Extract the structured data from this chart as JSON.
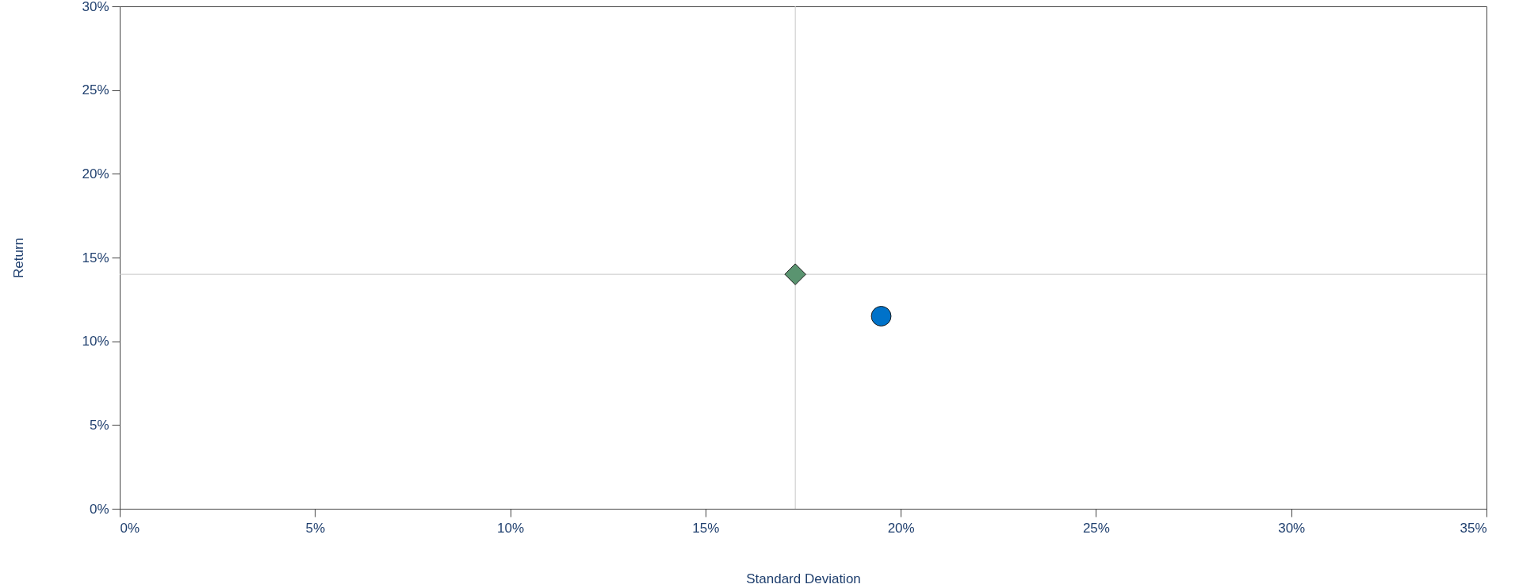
{
  "chart_data": {
    "type": "scatter",
    "xlabel": "Standard Deviation",
    "ylabel": "Return",
    "series": [
      {
        "color": "#5a9470",
        "marker": "diamond",
        "x": [
          17.3
        ],
        "values": [
          14.0
        ]
      },
      {
        "color": "#0072c9",
        "marker": "circle",
        "x": [
          19.5
        ],
        "values": [
          11.5
        ]
      }
    ],
    "xlim": [
      0,
      35
    ],
    "ylim": [
      0,
      30
    ],
    "xticks": [
      {
        "value": 0,
        "label": "0%"
      },
      {
        "value": 5,
        "label": "5%"
      },
      {
        "value": 10,
        "label": "10%"
      },
      {
        "value": 15,
        "label": "15%"
      },
      {
        "value": 20,
        "label": "20%"
      },
      {
        "value": 25,
        "label": "25%"
      },
      {
        "value": 30,
        "label": "30%"
      },
      {
        "value": 35,
        "label": "35%"
      }
    ],
    "yticks": [
      {
        "value": 0,
        "label": "0%"
      },
      {
        "value": 5,
        "label": "5%"
      },
      {
        "value": 10,
        "label": "10%"
      },
      {
        "value": 15,
        "label": "15%"
      },
      {
        "value": 20,
        "label": "20%"
      },
      {
        "value": 25,
        "label": "25%"
      },
      {
        "value": 30,
        "label": "30%"
      }
    ],
    "ref_lines": [
      {
        "axis": "x",
        "value": 17.3,
        "color": "#c8c8c8"
      },
      {
        "axis": "y",
        "value": 14.0,
        "color": "#c8c8c8"
      }
    ],
    "grid": false
  }
}
